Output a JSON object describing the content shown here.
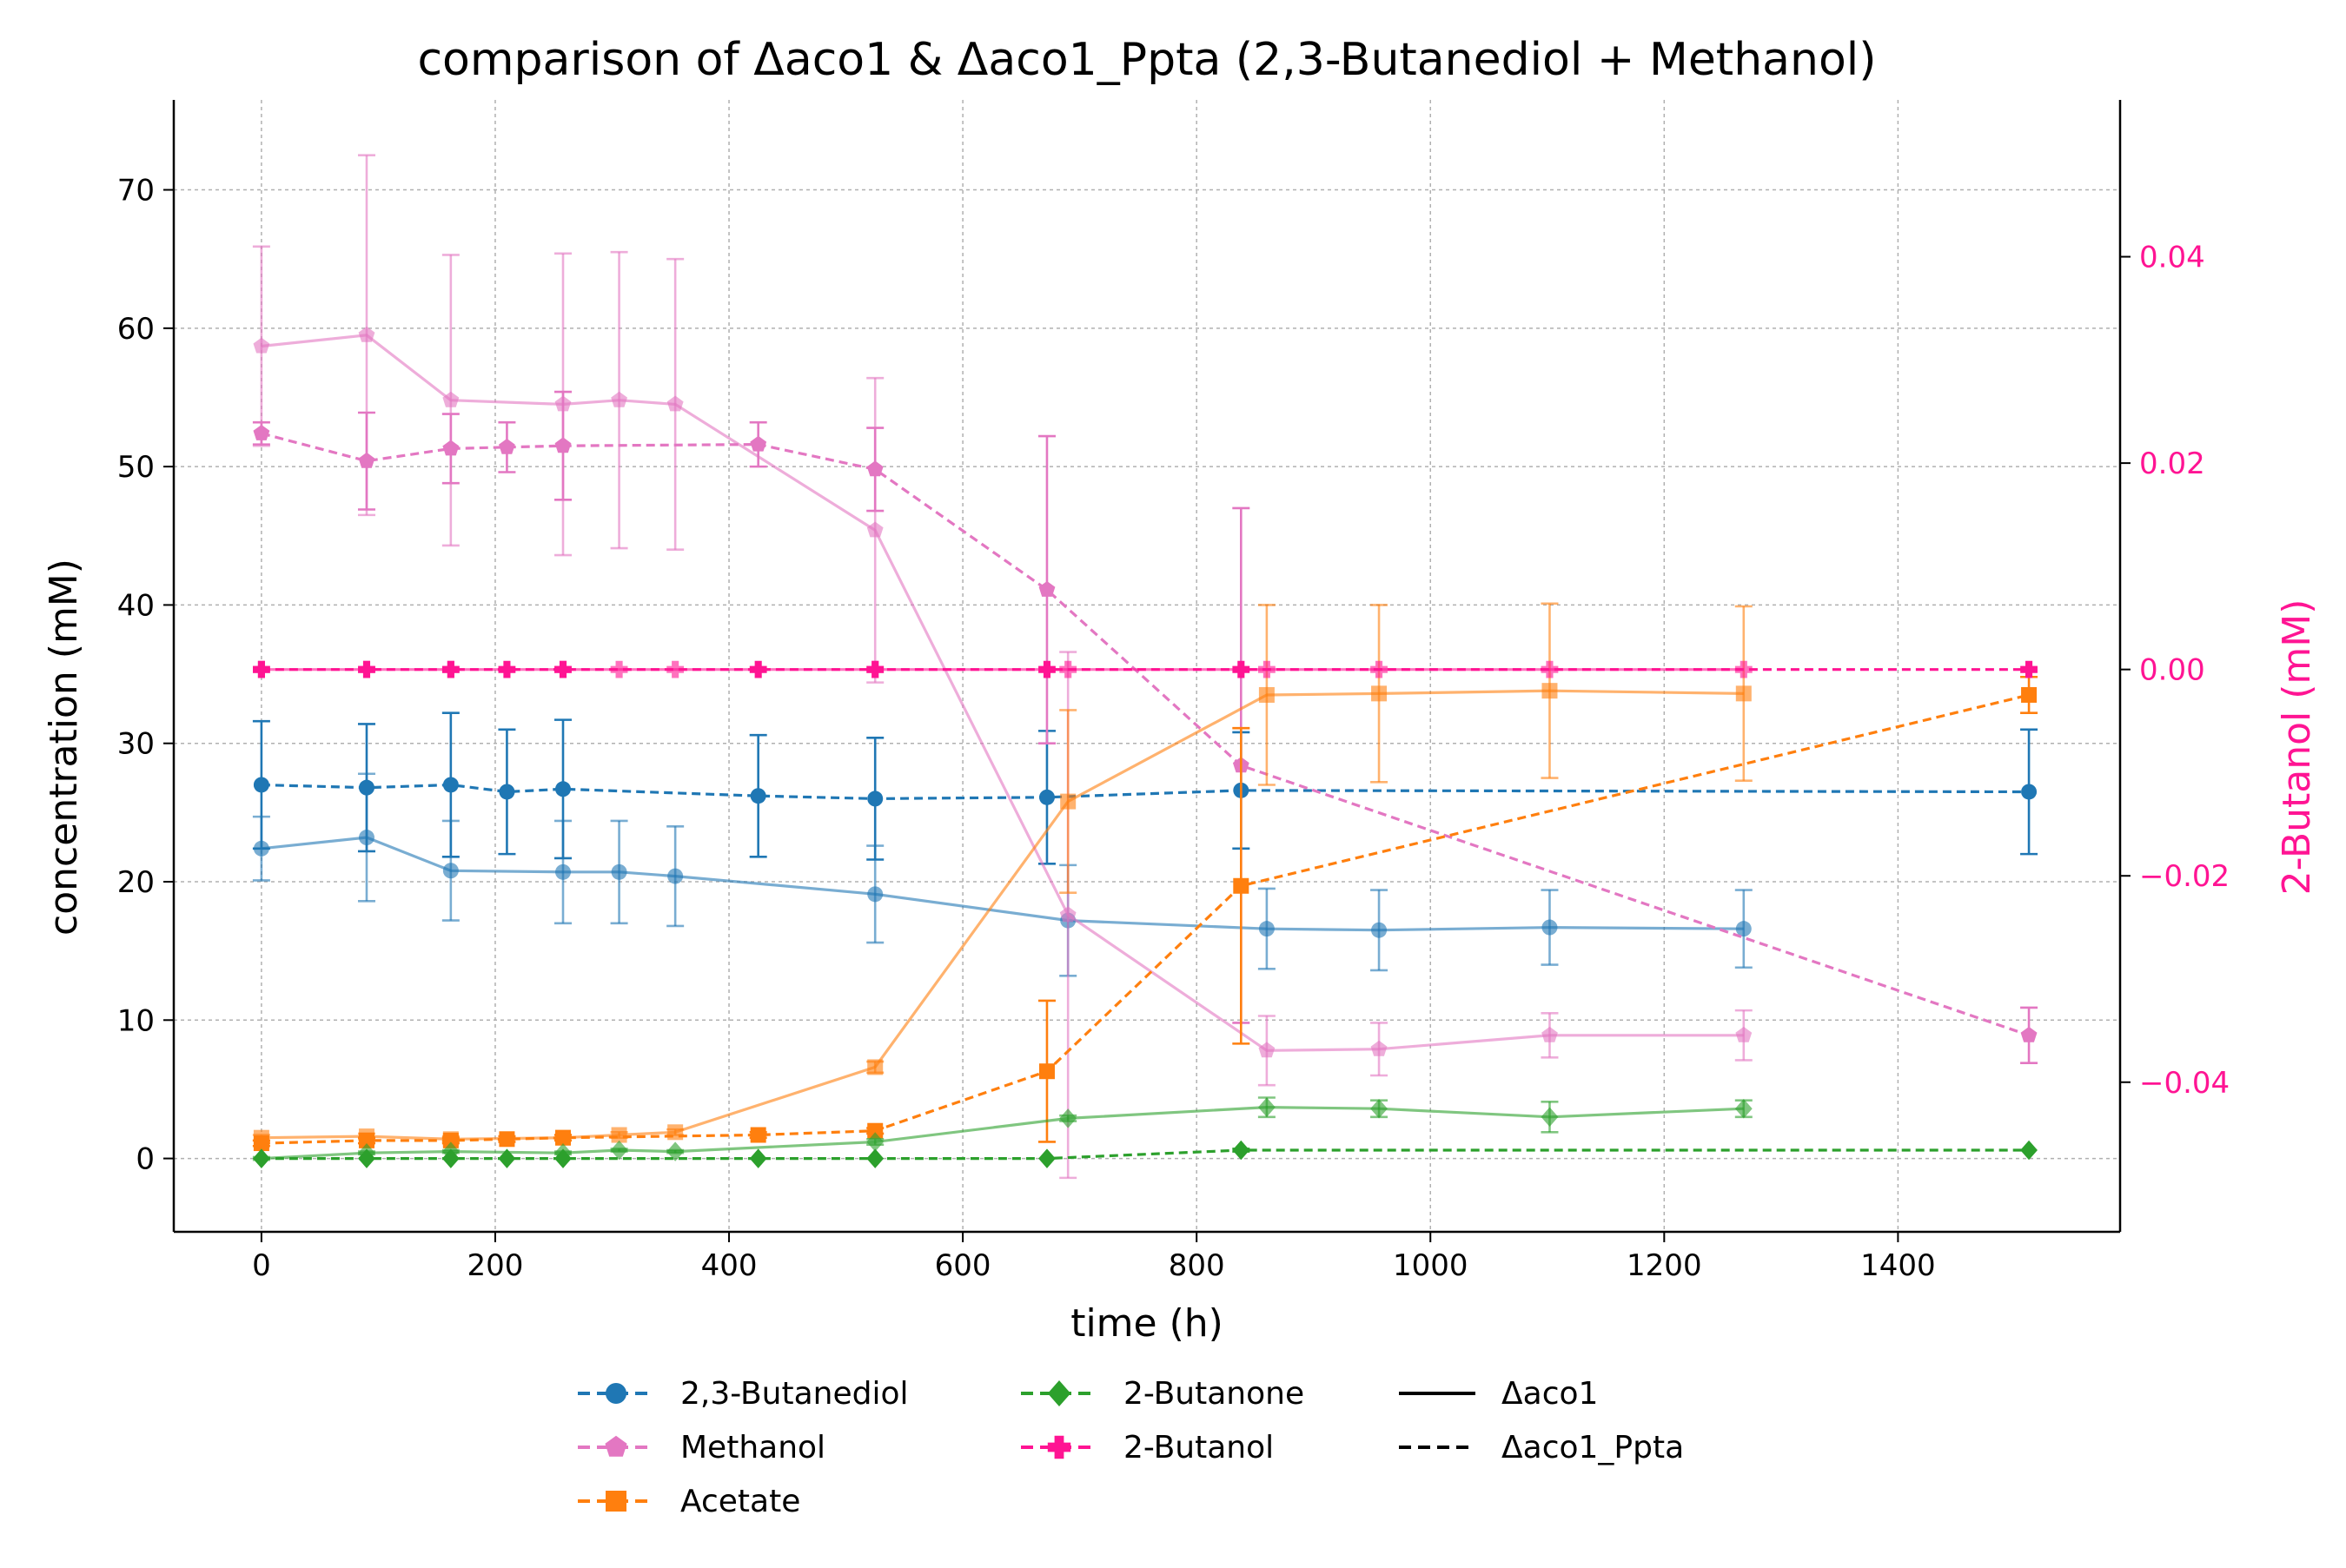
{
  "chart_data": {
    "type": "line",
    "title": "comparison of Δaco1 & Δaco1_Ppta (2,3-Butanediol + Methanol)",
    "xlabel": "time (h)",
    "ylabel": "concentration (mM)",
    "y2label": "2-Butanol (mM)",
    "xlim": [
      -75,
      1590
    ],
    "ylim": [
      -5.3,
      76.5
    ],
    "y2lim": [
      -0.0545,
      0.0552
    ],
    "xticks": [
      0,
      200,
      400,
      600,
      800,
      1000,
      1200,
      1400
    ],
    "yticks": [
      0,
      10,
      20,
      30,
      40,
      50,
      60,
      70
    ],
    "y2ticks": [
      -0.04,
      -0.02,
      0.0,
      0.02,
      0.04
    ],
    "y2ticklabels": [
      "−0.04",
      "−0.02",
      "0.00",
      "0.02",
      "0.04"
    ],
    "grid": true,
    "legend_position": "below-center",
    "colors": {
      "butanediol": "#1f77b4",
      "methanol": "#e377c2",
      "acetate": "#ff7f0e",
      "butanone": "#2ca02c",
      "butanol": "#ff1493",
      "axis": "#000000",
      "grid": "#b0b0b0"
    },
    "series": [
      {
        "key": "butanediol",
        "strain": "aco1",
        "axis": "left",
        "marker": "circle",
        "color": "#1f77b4",
        "x": [
          0,
          90,
          162,
          258,
          306,
          354,
          525,
          690,
          860,
          956,
          1102,
          1268
        ],
        "y": [
          22.4,
          23.2,
          20.8,
          20.7,
          20.7,
          20.4,
          19.1,
          17.2,
          16.6,
          16.5,
          16.7,
          16.6
        ],
        "err": [
          2.3,
          4.6,
          3.6,
          3.7,
          3.7,
          3.6,
          3.5,
          4.0,
          2.9,
          2.9,
          2.7,
          2.8
        ]
      },
      {
        "key": "butanediol",
        "strain": "aco1_Ppta",
        "axis": "left",
        "marker": "circle",
        "color": "#1f77b4",
        "x": [
          0,
          90,
          162,
          210,
          258,
          425,
          525,
          672,
          838,
          1512
        ],
        "y": [
          27.0,
          26.8,
          27.0,
          26.5,
          26.7,
          26.2,
          26.0,
          26.1,
          26.6,
          26.5
        ],
        "err": [
          4.6,
          4.6,
          5.2,
          4.5,
          5.0,
          4.4,
          4.4,
          4.8,
          4.2,
          4.5
        ]
      },
      {
        "key": "methanol",
        "strain": "aco1",
        "axis": "left",
        "marker": "pentagon",
        "color": "#e377c2",
        "x": [
          0,
          90,
          162,
          258,
          306,
          354,
          525,
          690,
          860,
          956,
          1102,
          1268
        ],
        "y": [
          58.7,
          59.5,
          54.8,
          54.5,
          54.8,
          54.5,
          45.4,
          17.6,
          7.8,
          7.9,
          8.9,
          8.9
        ],
        "err": [
          7.2,
          13.0,
          10.5,
          10.9,
          10.7,
          10.5,
          11.0,
          19.0,
          2.5,
          1.9,
          1.6,
          1.8
        ]
      },
      {
        "key": "methanol",
        "strain": "aco1_Ppta",
        "axis": "left",
        "marker": "pentagon",
        "color": "#e377c2",
        "x": [
          0,
          90,
          162,
          210,
          258,
          425,
          525,
          672,
          838,
          1512
        ],
        "y": [
          52.4,
          50.4,
          51.3,
          51.4,
          51.5,
          51.6,
          49.8,
          41.1,
          28.4,
          8.9
        ],
        "err": [
          0.8,
          3.5,
          2.5,
          1.8,
          3.9,
          1.6,
          3.0,
          11.1,
          18.6,
          2.0
        ]
      },
      {
        "key": "acetate",
        "strain": "aco1",
        "axis": "left",
        "marker": "square",
        "color": "#ff7f0e",
        "x": [
          0,
          90,
          162,
          258,
          306,
          354,
          525,
          690,
          860,
          956,
          1102,
          1268
        ],
        "y": [
          1.5,
          1.6,
          1.4,
          1.5,
          1.7,
          1.9,
          6.6,
          25.8,
          33.5,
          33.6,
          33.8,
          33.6
        ],
        "err": [
          0.2,
          0.2,
          0.2,
          0.2,
          0.2,
          0.2,
          0.4,
          6.6,
          6.5,
          6.4,
          6.3,
          6.3
        ]
      },
      {
        "key": "acetate",
        "strain": "aco1_Ppta",
        "axis": "left",
        "marker": "square",
        "color": "#ff7f0e",
        "x": [
          0,
          90,
          162,
          210,
          258,
          425,
          525,
          672,
          838,
          1512
        ],
        "y": [
          1.1,
          1.3,
          1.3,
          1.4,
          1.5,
          1.7,
          2.0,
          6.3,
          19.7,
          33.5
        ],
        "err": [
          0.2,
          0.2,
          0.2,
          0.2,
          0.2,
          0.2,
          0.2,
          5.1,
          11.4,
          1.3
        ]
      },
      {
        "key": "butanone",
        "strain": "aco1",
        "axis": "left",
        "marker": "diamond",
        "color": "#2ca02c",
        "x": [
          0,
          90,
          162,
          258,
          306,
          354,
          525,
          690,
          860,
          956,
          1102,
          1268
        ],
        "y": [
          0.0,
          0.4,
          0.5,
          0.4,
          0.6,
          0.5,
          1.2,
          2.9,
          3.7,
          3.6,
          3.0,
          3.6
        ],
        "err": [
          0.1,
          0.1,
          0.1,
          0.1,
          0.1,
          0.1,
          0.2,
          0.2,
          0.7,
          0.6,
          1.1,
          0.6
        ]
      },
      {
        "key": "butanone",
        "strain": "aco1_Ppta",
        "axis": "left",
        "marker": "diamond",
        "color": "#2ca02c",
        "x": [
          0,
          90,
          162,
          210,
          258,
          425,
          525,
          672,
          838,
          1512
        ],
        "y": [
          0.0,
          0.0,
          0.0,
          0.0,
          0.0,
          0.0,
          0.0,
          0.0,
          0.6,
          0.6
        ],
        "err": [
          0.0,
          0.0,
          0.0,
          0.0,
          0.0,
          0.0,
          0.0,
          0.0,
          0.1,
          0.0
        ]
      },
      {
        "key": "butanol",
        "strain": "aco1",
        "axis": "right",
        "marker": "plus",
        "color": "#ff1493",
        "x": [
          0,
          90,
          162,
          258,
          306,
          354,
          525,
          690,
          860,
          956,
          1102,
          1268
        ],
        "y": [
          0,
          0,
          0,
          0,
          0,
          0,
          0,
          0,
          0,
          0,
          0,
          0
        ],
        "err": [
          0,
          0,
          0,
          0,
          0,
          0,
          0,
          0,
          0,
          0,
          0,
          0
        ]
      },
      {
        "key": "butanol",
        "strain": "aco1_Ppta",
        "axis": "right",
        "marker": "plus",
        "color": "#ff1493",
        "x": [
          0,
          90,
          162,
          210,
          258,
          425,
          525,
          672,
          838,
          1512
        ],
        "y": [
          0,
          0,
          0,
          0,
          0,
          0,
          0,
          0,
          0,
          0
        ],
        "err": [
          0,
          0,
          0,
          0,
          0,
          0,
          0,
          0,
          0,
          0
        ]
      }
    ],
    "legend": {
      "compounds": [
        {
          "key": "butanediol",
          "label": "2,3-Butanediol",
          "marker": "circle",
          "color": "#1f77b4"
        },
        {
          "key": "methanol",
          "label": "Methanol",
          "marker": "pentagon",
          "color": "#e377c2"
        },
        {
          "key": "acetate",
          "label": "Acetate",
          "marker": "square",
          "color": "#ff7f0e"
        },
        {
          "key": "butanone",
          "label": "2-Butanone",
          "marker": "diamond",
          "color": "#2ca02c"
        },
        {
          "key": "butanol",
          "label": "2-Butanol",
          "marker": "plus",
          "color": "#ff1493"
        }
      ],
      "strains": [
        {
          "key": "aco1",
          "label": "Δaco1",
          "style": "solid"
        },
        {
          "key": "aco1_Ppta",
          "label": "Δaco1_Ppta",
          "style": "dashed"
        }
      ]
    }
  }
}
